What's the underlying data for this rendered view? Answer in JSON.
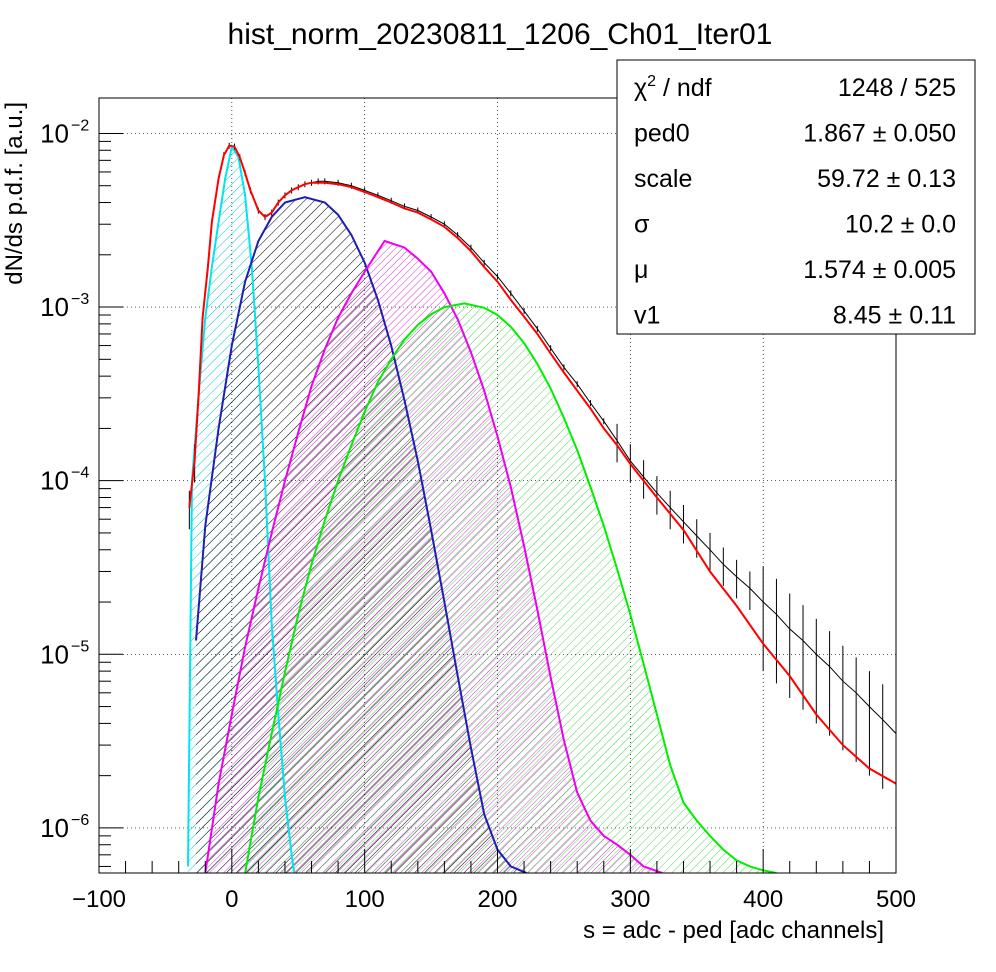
{
  "chart_data": {
    "type": "line",
    "title": "hist_norm_20230811_1206_Ch01_Iter01",
    "xlabel": "s = adc - ped [adc channels]",
    "ylabel": "dN/ds p.d.f. [a.u.]",
    "xlim": [
      -100,
      500
    ],
    "ylim": [
      5.5e-07,
      0.016
    ],
    "yscale": "log",
    "grid": true,
    "xticks": [
      -100,
      0,
      100,
      200,
      300,
      400,
      500
    ],
    "xtick_labels": [
      "−100",
      "0",
      "100",
      "200",
      "300",
      "400",
      "500"
    ],
    "yticks": [
      {
        "value": 1e-06,
        "base": "10",
        "exp": "−6"
      },
      {
        "value": 1e-05,
        "base": "10",
        "exp": "−5"
      },
      {
        "value": 0.0001,
        "base": "10",
        "exp": "−4"
      },
      {
        "value": 0.001,
        "base": "10",
        "exp": "−3"
      },
      {
        "value": 0.01,
        "base": "10",
        "exp": "−2"
      }
    ],
    "series": [
      {
        "key": "data",
        "style": "histogram-errorbars",
        "color": "#000000",
        "x": [
          -32,
          -28,
          -25,
          -22,
          -18,
          -15,
          -10,
          -6,
          -2,
          2,
          6,
          10,
          14,
          20,
          25,
          30,
          35,
          40,
          45,
          50,
          55,
          60,
          65,
          70,
          80,
          90,
          100,
          110,
          120,
          130,
          140,
          150,
          160,
          170,
          180,
          190,
          200,
          210,
          220,
          230,
          240,
          250,
          260,
          270,
          280,
          290,
          300,
          310,
          320,
          330,
          340,
          350,
          360,
          370,
          380,
          390,
          400,
          410,
          420,
          430,
          440,
          450,
          460,
          470,
          480,
          490,
          500
        ],
        "y": [
          7e-05,
          0.00013,
          0.00031,
          0.00087,
          0.0017,
          0.0031,
          0.0055,
          0.0075,
          0.0085,
          0.0084,
          0.0073,
          0.0059,
          0.0047,
          0.0036,
          0.0033,
          0.0035,
          0.004,
          0.0044,
          0.0047,
          0.0049,
          0.0051,
          0.0052,
          0.0053,
          0.0053,
          0.0052,
          0.005,
          0.0047,
          0.0044,
          0.0041,
          0.0038,
          0.0036,
          0.0033,
          0.003,
          0.0026,
          0.0022,
          0.0018,
          0.0015,
          0.0012,
          0.00095,
          0.00075,
          0.00058,
          0.00045,
          0.00036,
          0.00028,
          0.00022,
          0.00017,
          0.00013,
          0.000105,
          8.5e-05,
          7e-05,
          5.8e-05,
          4.8e-05,
          4e-05,
          3.3e-05,
          2.8e-05,
          2.4e-05,
          2e-05,
          1.7e-05,
          1.4e-05,
          1.2e-05,
          1e-05,
          8.5e-06,
          7e-06,
          6e-06,
          5e-06,
          4.2e-06,
          3.5e-06
        ]
      },
      {
        "key": "fit",
        "style": "line",
        "color": "#ff0000",
        "x": [
          -32,
          -28,
          -25,
          -22,
          -18,
          -15,
          -10,
          -6,
          -2,
          2,
          6,
          10,
          14,
          20,
          25,
          30,
          35,
          40,
          45,
          50,
          55,
          60,
          65,
          70,
          80,
          90,
          100,
          110,
          120,
          130,
          140,
          150,
          160,
          170,
          180,
          190,
          200,
          210,
          220,
          230,
          240,
          250,
          260,
          270,
          280,
          290,
          300,
          320,
          340,
          360,
          380,
          400,
          420,
          440,
          460,
          480,
          500
        ],
        "y": [
          7e-05,
          0.00013,
          0.00031,
          0.00087,
          0.0017,
          0.0031,
          0.0055,
          0.0075,
          0.0085,
          0.0084,
          0.0073,
          0.0059,
          0.0047,
          0.0036,
          0.0033,
          0.0035,
          0.004,
          0.0044,
          0.0047,
          0.0049,
          0.0051,
          0.0052,
          0.0052,
          0.0052,
          0.0051,
          0.0049,
          0.0046,
          0.0043,
          0.004,
          0.0037,
          0.0035,
          0.0032,
          0.0029,
          0.0025,
          0.0021,
          0.0017,
          0.0014,
          0.0011,
          0.00088,
          0.0007,
          0.00054,
          0.00042,
          0.00033,
          0.00026,
          0.0002,
          0.00016,
          0.000125,
          8e-05,
          5.2e-05,
          3e-05,
          1.9e-05,
          1.15e-05,
          7.5e-06,
          4.5e-06,
          3e-06,
          2.2e-06,
          1.8e-06
        ]
      },
      {
        "key": "pedestal",
        "style": "filled",
        "color": "#00e5ee",
        "hatch": "pedHatch",
        "x": [
          -33,
          -30,
          -25,
          -20,
          -15,
          -10,
          -5,
          0,
          5,
          10,
          15,
          20,
          25,
          30,
          35,
          40,
          45,
          47
        ],
        "y": [
          6e-07,
          0.0001,
          0.00031,
          0.00087,
          0.0017,
          0.0031,
          0.0055,
          0.0084,
          0.0073,
          0.0044,
          0.0017,
          0.00045,
          0.0001,
          1.5e-05,
          4.5e-06,
          1.5e-06,
          7e-07,
          5.5e-07
        ]
      },
      {
        "key": "pe1",
        "style": "filled",
        "color": "#1e1eb4",
        "hatch": "pe1Hatch",
        "x": [
          -27,
          -20,
          -10,
          0,
          10,
          20,
          30,
          40,
          55,
          70,
          80,
          90,
          100,
          110,
          120,
          130,
          140,
          150,
          160,
          170,
          180,
          190,
          200,
          210,
          222
        ],
        "y": [
          1.2e-05,
          5.5e-05,
          0.0002,
          0.0006,
          0.0014,
          0.0024,
          0.0033,
          0.004,
          0.0043,
          0.004,
          0.0034,
          0.0026,
          0.0018,
          0.0011,
          0.0006,
          0.00029,
          0.00013,
          5.2e-05,
          2e-05,
          7.5e-06,
          2.9e-06,
          1.2e-06,
          7.5e-07,
          6e-07,
          5.5e-07
        ]
      },
      {
        "key": "pe2",
        "style": "filled",
        "color": "#ee00ee",
        "hatch": "pe2Hatch",
        "x": [
          -20,
          -10,
          0,
          10,
          20,
          30,
          40,
          50,
          60,
          70,
          80,
          90,
          100,
          115,
          130,
          140,
          150,
          160,
          170,
          180,
          190,
          200,
          210,
          220,
          230,
          240,
          250,
          260,
          270,
          280,
          290,
          300,
          310,
          324
        ],
        "y": [
          5.5e-07,
          1.8e-06,
          4.5e-06,
          1.1e-05,
          2.4e-05,
          5e-05,
          0.0001,
          0.00019,
          0.00035,
          0.00057,
          0.00087,
          0.0012,
          0.0016,
          0.0024,
          0.0022,
          0.0019,
          0.0016,
          0.0012,
          0.00085,
          0.00055,
          0.00033,
          0.00018,
          9.2e-05,
          4.2e-05,
          1.8e-05,
          7.4e-06,
          3.2e-06,
          1.6e-06,
          1.1e-06,
          9e-07,
          8e-07,
          7e-07,
          6e-07,
          5.5e-07
        ]
      },
      {
        "key": "pe3",
        "style": "filled",
        "color": "#00ee00",
        "hatch": "pe3Hatch",
        "x": [
          10,
          20,
          30,
          40,
          50,
          60,
          70,
          80,
          90,
          100,
          110,
          120,
          130,
          140,
          150,
          160,
          175,
          190,
          200,
          210,
          220,
          230,
          240,
          250,
          260,
          270,
          280,
          290,
          300,
          310,
          320,
          330,
          340,
          350,
          360,
          370,
          380,
          390,
          400,
          410
        ],
        "y": [
          5.5e-07,
          1.5e-06,
          3.5e-06,
          7.9e-06,
          1.7e-05,
          3.3e-05,
          5.9e-05,
          0.0001,
          0.00016,
          0.00025,
          0.00037,
          0.0005,
          0.00065,
          0.00079,
          0.00091,
          0.001,
          0.00105,
          0.00099,
          0.0009,
          0.00077,
          0.00062,
          0.00047,
          0.00034,
          0.00023,
          0.00015,
          9.2e-05,
          5.5e-05,
          3.1e-05,
          1.7e-05,
          8.8e-06,
          4.5e-06,
          2.3e-06,
          1.4e-06,
          1.1e-06,
          9e-07,
          7.5e-07,
          6.5e-07,
          6e-07,
          5.7e-07,
          5.5e-07
        ]
      }
    ]
  },
  "stats_box": {
    "rows": [
      {
        "label": "χ",
        "sup": "2",
        "label_rest": " / ndf",
        "value": "1248 / 525"
      },
      {
        "label": "ped0",
        "value": "1.867 ± 0.050"
      },
      {
        "label": "scale",
        "value": "59.72 ± 0.13"
      },
      {
        "label": "σ",
        "value": "10.2 ± 0.0"
      },
      {
        "label": "μ",
        "value": "1.574 ± 0.005"
      },
      {
        "label": "v1",
        "value": "8.45 ± 0.11"
      }
    ]
  }
}
